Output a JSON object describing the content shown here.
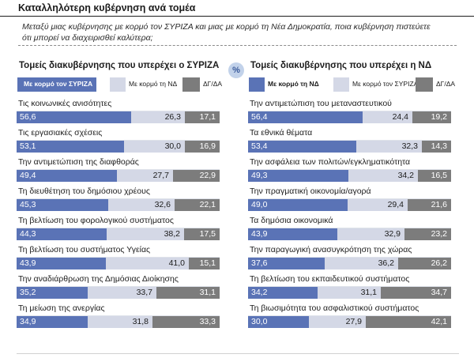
{
  "header": {
    "title": "Καταλληλότερη κυβέρνηση ανά τομέα",
    "subtitle_line1": "Μεταξύ μιας κυβέρνησης με κορμό τον ΣΥΡΙΖΑ και μιας με κορμό τη Νέα Δημοκρατία, ποια κυβέρνηση πιστεύετε",
    "subtitle_line2": "ότι μπορεί να διαχειρισθεί καλύτερα;",
    "percent_symbol": "%"
  },
  "colors": {
    "syriza": "#5a73b6",
    "nd": "#d4d8e6",
    "dk": "#7c7c7c"
  },
  "chart_data": [
    {
      "type": "bar",
      "stacked": true,
      "orientation": "horizontal",
      "title": "Τομείς διακυβέρνησης που υπερέχει ο ΣΥΡΙΖΑ",
      "legend": [
        "Με κορμό τον ΣΥΡΙΖΑ",
        "Με κορμό τη ΝΔ",
        "ΔΓ/ΔΑ"
      ],
      "categories": [
        "Τις κοινωνικές ανισότητες",
        "Τις εργασιακές σχέσεις",
        "Την αντιμετώπιση της διαφθοράς",
        "Τη διευθέτηση του δημόσιου χρέους",
        "Τη βελτίωση του φορολογικού συστήματος",
        "Τη βελτίωση του συστήματος Υγείας",
        "Την αναδιάρθρωση της Δημόσιας Διοίκησης",
        "Τη μείωση της ανεργίας"
      ],
      "series": [
        {
          "name": "Με κορμό τον ΣΥΡΙΖΑ",
          "values": [
            "56,6",
            "53,1",
            "49,4",
            "45,3",
            "44,3",
            "43,9",
            "35,2",
            "34,9"
          ]
        },
        {
          "name": "Με κορμό τη ΝΔ",
          "values": [
            "26,3",
            "30,0",
            "27,7",
            "32,6",
            "38,2",
            "41,0",
            "33,7",
            "31,8"
          ]
        },
        {
          "name": "ΔΓ/ΔΑ",
          "values": [
            "17,1",
            "16,9",
            "22,9",
            "22,1",
            "17,5",
            "15,1",
            "31,1",
            "33,3"
          ]
        }
      ]
    },
    {
      "type": "bar",
      "stacked": true,
      "orientation": "horizontal",
      "title": "Τομείς διακυβέρνησης που υπερέχει η ΝΔ",
      "legend": [
        "Με κορμό τη ΝΔ",
        "Με κορμό τον ΣΥΡΙΖΑ",
        "ΔΓ/ΔΑ"
      ],
      "categories": [
        "Την αντιμετώπιση του μεταναστευτικού",
        "Τα εθνικά θέματα",
        "Την ασφάλεια των πολιτών/εγκληματικότητα",
        "Την πραγματική οικονομία/αγορά",
        "Τα δημόσια οικονομικά",
        "Την παραγωγική ανασυγκρότηση της χώρας",
        "Τη βελτίωση του εκπαιδευτικού συστήματος",
        "Τη βιωσιμότητα του ασφαλιστικού συστήματος"
      ],
      "series": [
        {
          "name": "Με κορμό τη ΝΔ",
          "values": [
            "56,4",
            "53,4",
            "49,3",
            "49,0",
            "43,9",
            "37,6",
            "34,2",
            "30,0"
          ]
        },
        {
          "name": "Με κορμό τον ΣΥΡΙΖΑ",
          "values": [
            "24,4",
            "32,3",
            "34,2",
            "29,4",
            "32,9",
            "36,2",
            "31,1",
            "27,9"
          ]
        },
        {
          "name": "ΔΓ/ΔΑ",
          "values": [
            "19,2",
            "14,3",
            "16,5",
            "21,6",
            "23,2",
            "26,2",
            "34,7",
            "42,1"
          ]
        }
      ]
    }
  ]
}
